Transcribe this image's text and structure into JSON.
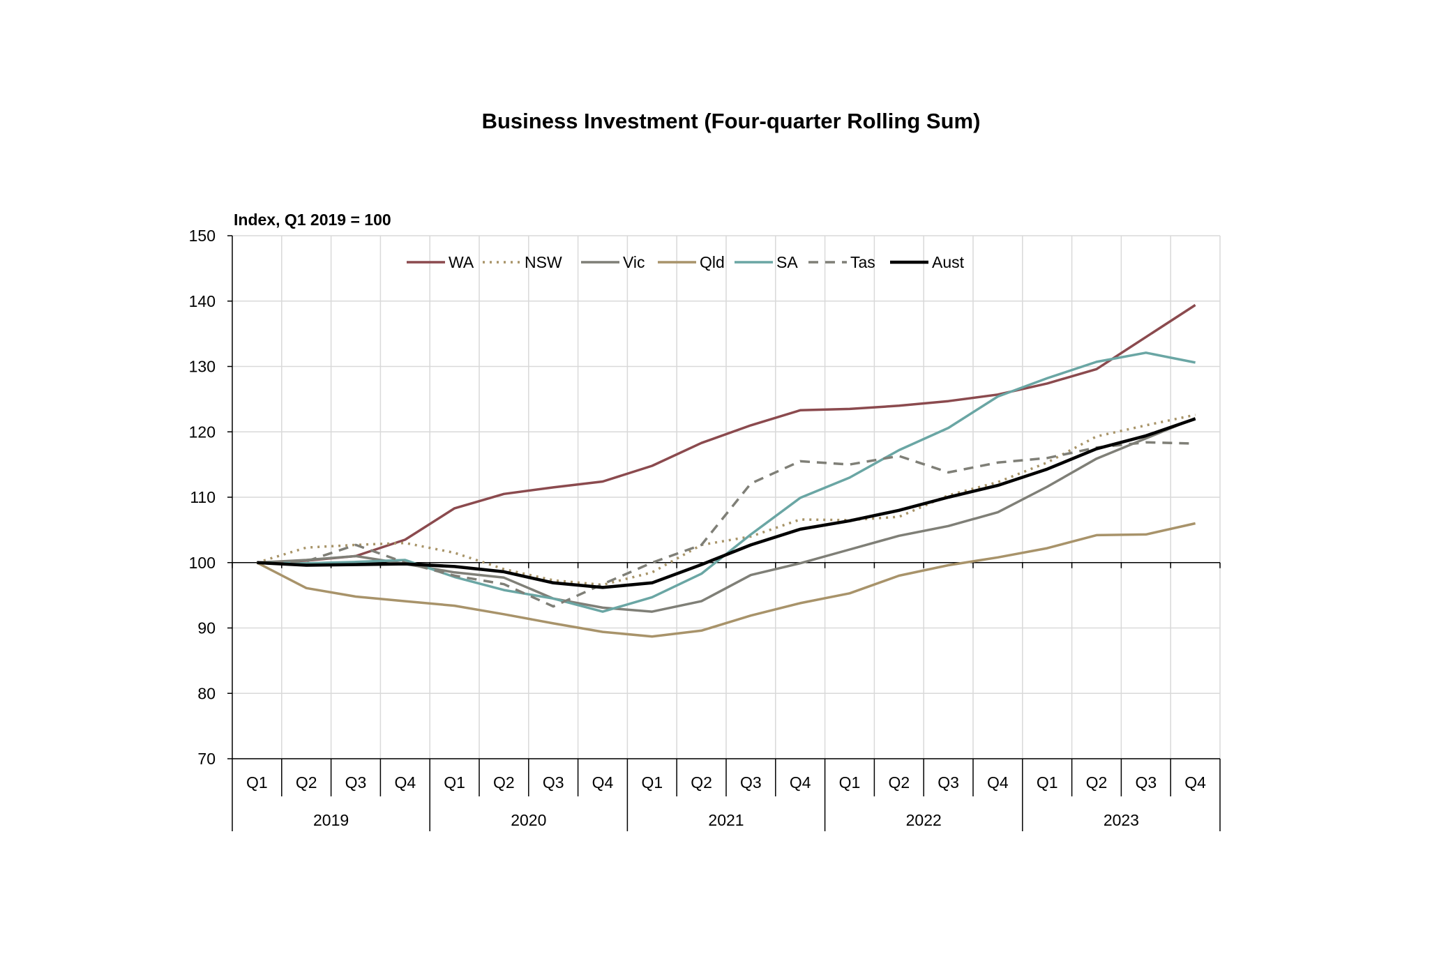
{
  "chart_data": {
    "type": "line",
    "title": "Business Investment (Four-quarter Rolling Sum)",
    "ylabel": "Index, Q1 2019 = 100",
    "xlabel": "",
    "ylim": [
      70,
      150
    ],
    "yticks": [
      70,
      80,
      90,
      100,
      110,
      120,
      130,
      140,
      150
    ],
    "grid": true,
    "legend_position": "top",
    "quarters": [
      "Q1",
      "Q2",
      "Q3",
      "Q4",
      "Q1",
      "Q2",
      "Q3",
      "Q4",
      "Q1",
      "Q2",
      "Q3",
      "Q4",
      "Q1",
      "Q2",
      "Q3",
      "Q4",
      "Q1",
      "Q2",
      "Q3",
      "Q4"
    ],
    "years": [
      "2019",
      "2020",
      "2021",
      "2022",
      "2023"
    ],
    "series": [
      {
        "name": "WA",
        "color": "#8B4A4E",
        "style": "solid",
        "values": [
          100,
          100.3,
          101,
          103.5,
          108.3,
          110.5,
          111.5,
          112.4,
          114.8,
          118.3,
          121,
          123.3,
          123.5,
          124,
          124.7,
          125.7,
          127.4,
          129.6,
          134.5,
          139.4
        ]
      },
      {
        "name": "NSW",
        "color": "#A89468",
        "style": "dotted",
        "values": [
          100,
          102.3,
          102.7,
          103,
          101.5,
          99,
          97.3,
          96.6,
          98.5,
          102.7,
          104,
          106.6,
          106.5,
          107,
          110.3,
          112.3,
          115.3,
          119.3,
          121,
          122.6
        ]
      },
      {
        "name": "Vic",
        "color": "#7F7F77",
        "style": "solid",
        "values": [
          100,
          100.4,
          101,
          99.8,
          98.5,
          97.7,
          94.5,
          93.1,
          92.5,
          94.1,
          98.1,
          99.9,
          102,
          104.1,
          105.6,
          107.7,
          111.6,
          115.9,
          119,
          122.1
        ]
      },
      {
        "name": "Qld",
        "color": "#A8936A",
        "style": "solid",
        "values": [
          100,
          96.1,
          94.8,
          94.1,
          93.4,
          92.1,
          90.7,
          89.4,
          88.7,
          89.6,
          91.9,
          93.8,
          95.3,
          98,
          99.6,
          100.8,
          102.2,
          104.2,
          104.3,
          106
        ]
      },
      {
        "name": "SA",
        "color": "#6AA6A4",
        "style": "solid",
        "values": [
          100,
          99.9,
          100.1,
          100.4,
          97.8,
          95.8,
          94.5,
          92.5,
          94.7,
          98.3,
          104.3,
          109.9,
          113,
          117.2,
          120.6,
          125.4,
          128.2,
          130.7,
          132.1,
          130.6
        ]
      },
      {
        "name": "Tas",
        "color": "#7F7F77",
        "style": "dashed",
        "values": [
          100,
          100.2,
          102.7,
          100,
          98,
          96.7,
          93.3,
          96.7,
          100,
          102.7,
          112.1,
          115.5,
          115,
          116.3,
          113.8,
          115.3,
          116,
          117.6,
          118.4,
          118.2
        ]
      },
      {
        "name": "Aust",
        "color": "#000000",
        "style": "solid",
        "values": [
          100,
          99.6,
          99.7,
          99.8,
          99.4,
          98.6,
          96.9,
          96.2,
          96.9,
          99.7,
          102.7,
          105.1,
          106.4,
          108,
          110,
          111.8,
          114.3,
          117.4,
          119.4,
          122
        ]
      }
    ]
  }
}
